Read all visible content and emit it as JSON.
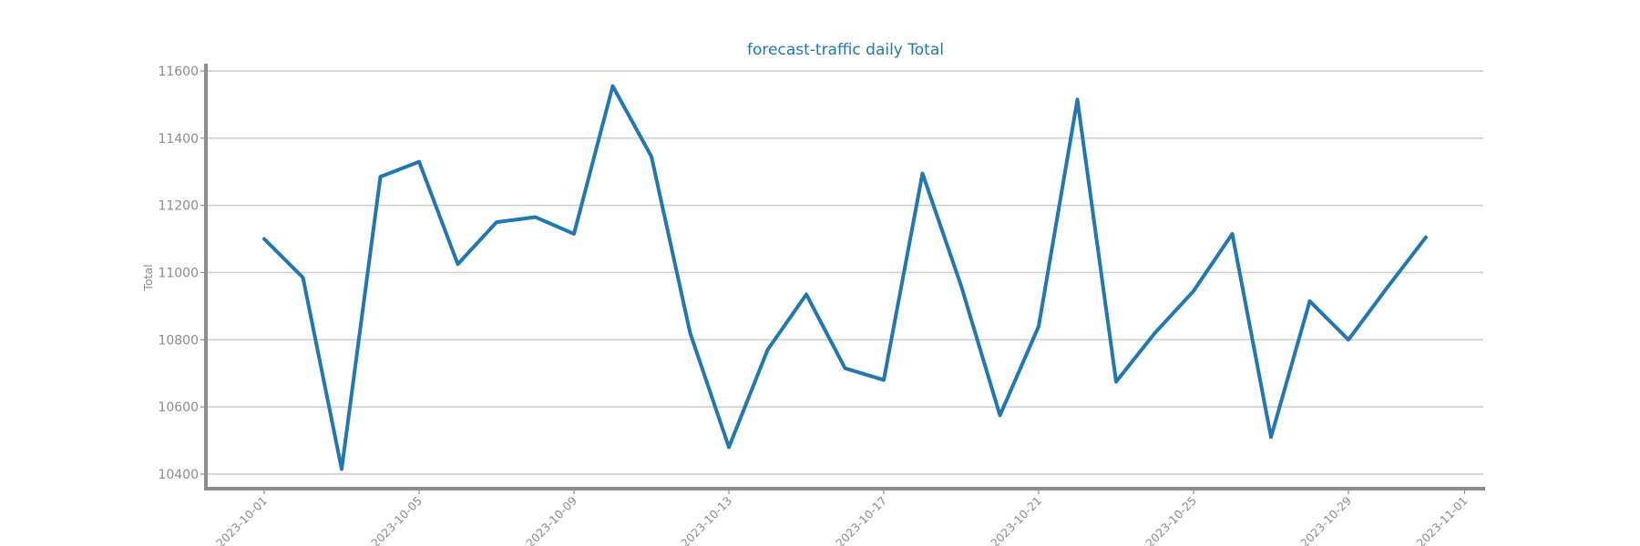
{
  "chart_data": {
    "type": "line",
    "title": "forecast-traffic daily Total",
    "xlabel": "",
    "ylabel": "Total",
    "x": [
      "2023-10-01",
      "2023-10-02",
      "2023-10-03",
      "2023-10-04",
      "2023-10-05",
      "2023-10-06",
      "2023-10-07",
      "2023-10-08",
      "2023-10-09",
      "2023-10-10",
      "2023-10-11",
      "2023-10-12",
      "2023-10-13",
      "2023-10-14",
      "2023-10-15",
      "2023-10-16",
      "2023-10-17",
      "2023-10-18",
      "2023-10-19",
      "2023-10-20",
      "2023-10-21",
      "2023-10-22",
      "2023-10-23",
      "2023-10-24",
      "2023-10-25",
      "2023-10-26",
      "2023-10-27",
      "2023-10-28",
      "2023-10-29",
      "2023-10-30",
      "2023-10-31"
    ],
    "series": [
      {
        "name": "",
        "values": [
          11100,
          10985,
          10415,
          11285,
          11330,
          11025,
          11150,
          11165,
          11115,
          11555,
          11345,
          10820,
          10480,
          10770,
          10935,
          10715,
          10680,
          11295,
          10960,
          10575,
          10840,
          11515,
          10675,
          10820,
          10945,
          11115,
          10510,
          10915,
          10800,
          10955,
          11105
        ],
        "color": "#1f77b4"
      }
    ],
    "x_ticks": [
      "2023-10-01",
      "2023-10-05",
      "2023-10-09",
      "2023-10-13",
      "2023-10-17",
      "2023-10-21",
      "2023-10-25",
      "2023-10-29",
      "2023-11-01"
    ],
    "y_ticks": [
      10400,
      10600,
      10800,
      11000,
      11200,
      11400,
      11600
    ],
    "xlim": [
      "2023-09-29.5",
      "2023-11-01.5"
    ],
    "ylim": [
      10360,
      11620
    ],
    "grid": true,
    "legend": "none"
  }
}
